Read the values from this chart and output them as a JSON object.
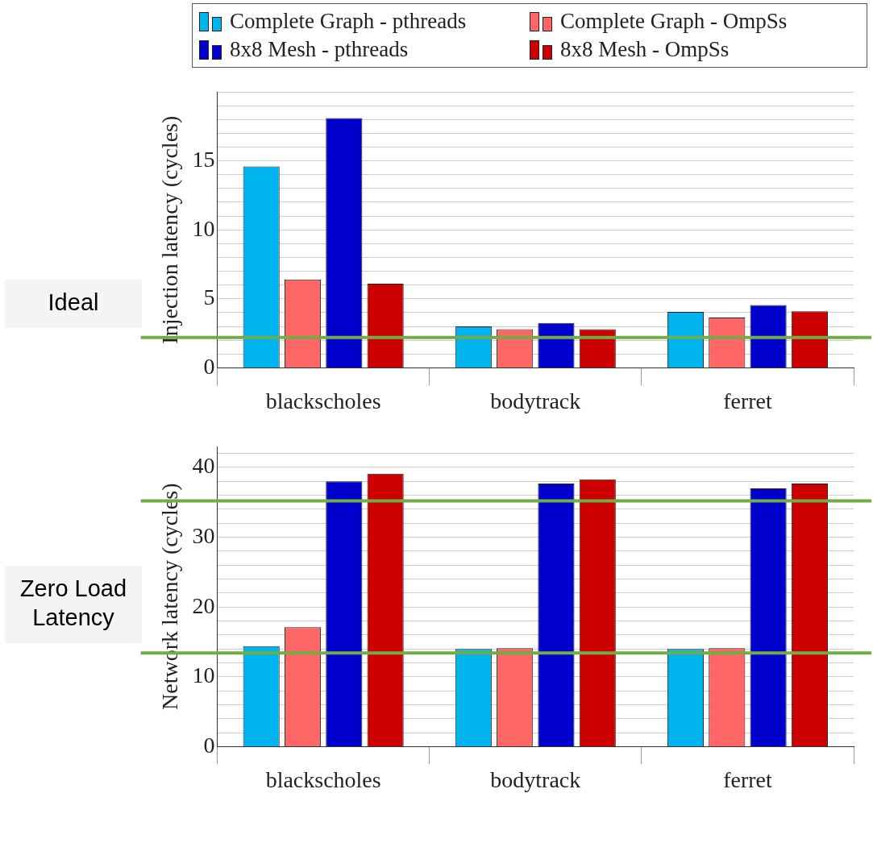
{
  "chart_data": [
    {
      "type": "bar",
      "ylabel": "Injection latency (cycles)",
      "categories": [
        "blackscholes",
        "bodytrack",
        "ferret"
      ],
      "series": [
        {
          "name": "Complete Graph - pthreads",
          "color": "#00b4ef",
          "values": [
            14.6,
            3.0,
            4.05
          ]
        },
        {
          "name": "Complete Graph - OmpSs",
          "color": "#ff6666",
          "values": [
            6.4,
            2.8,
            3.65
          ]
        },
        {
          "name": "8x8 Mesh - pthreads",
          "color": "#0000cc",
          "values": [
            18.1,
            3.25,
            4.55
          ]
        },
        {
          "name": "8x8 Mesh - OmpSs",
          "color": "#cc0000",
          "values": [
            6.1,
            2.8,
            4.1
          ]
        }
      ],
      "ylim": [
        0,
        20
      ],
      "yticks": [
        0,
        {
          "value": 1,
          "label": null
        },
        {
          "value": 2,
          "label": null
        },
        {
          "value": 3,
          "label": null
        },
        {
          "value": 4,
          "label": null
        },
        5,
        {
          "value": 6,
          "label": null
        },
        {
          "value": 7,
          "label": null
        },
        {
          "value": 8,
          "label": null
        },
        {
          "value": 9,
          "label": null
        },
        10,
        {
          "value": 11,
          "label": null
        },
        {
          "value": 12,
          "label": null
        },
        {
          "value": 13,
          "label": null
        },
        {
          "value": 14,
          "label": null
        },
        15,
        {
          "value": 16,
          "label": null
        },
        {
          "value": 17,
          "label": null
        },
        {
          "value": 18,
          "label": null
        },
        {
          "value": 19,
          "label": null
        },
        {
          "value": 20,
          "label": null
        }
      ],
      "grid": "y",
      "legend": "top",
      "ref_lines": [
        {
          "axis": "y",
          "value": 2.2,
          "label": "Ideal",
          "color": "#70ad47"
        }
      ]
    },
    {
      "type": "bar",
      "ylabel": "Network latency (cycles)",
      "categories": [
        "blackscholes",
        "bodytrack",
        "ferret"
      ],
      "series": [
        {
          "color": "#00b4ef",
          "values": [
            14.4,
            14.0,
            14.0
          ]
        },
        {
          "color": "#ff6666",
          "values": [
            17.1,
            14.1,
            14.1
          ]
        },
        {
          "color": "#0000cc",
          "values": [
            38.0,
            37.7,
            37.0
          ]
        },
        {
          "color": "#cc0000",
          "values": [
            39.1,
            38.3,
            37.7
          ]
        }
      ],
      "ylim": [
        0,
        43
      ],
      "yticks": [
        0,
        {
          "value": 2,
          "label": null
        },
        {
          "value": 4,
          "label": null
        },
        {
          "value": 6,
          "label": null
        },
        {
          "value": 8,
          "label": null
        },
        10,
        {
          "value": 12,
          "label": null
        },
        {
          "value": 14,
          "label": null
        },
        {
          "value": 16,
          "label": null
        },
        {
          "value": 18,
          "label": null
        },
        20,
        {
          "value": 22,
          "label": null
        },
        {
          "value": 24,
          "label": null
        },
        {
          "value": 26,
          "label": null
        },
        {
          "value": 28,
          "label": null
        },
        30,
        {
          "value": 32,
          "label": null
        },
        {
          "value": 34,
          "label": null
        },
        {
          "value": 36,
          "label": null
        },
        {
          "value": 38,
          "label": null
        },
        40,
        {
          "value": 42,
          "label": null
        }
      ],
      "grid": "y",
      "legend": false,
      "ref_lines": [
        {
          "axis": "y",
          "value": 35.2,
          "label": null,
          "color": "#70ad47"
        },
        {
          "axis": "y",
          "value": 13.4,
          "label": "Zero Load Latency",
          "color": "#70ad47"
        }
      ]
    }
  ]
}
